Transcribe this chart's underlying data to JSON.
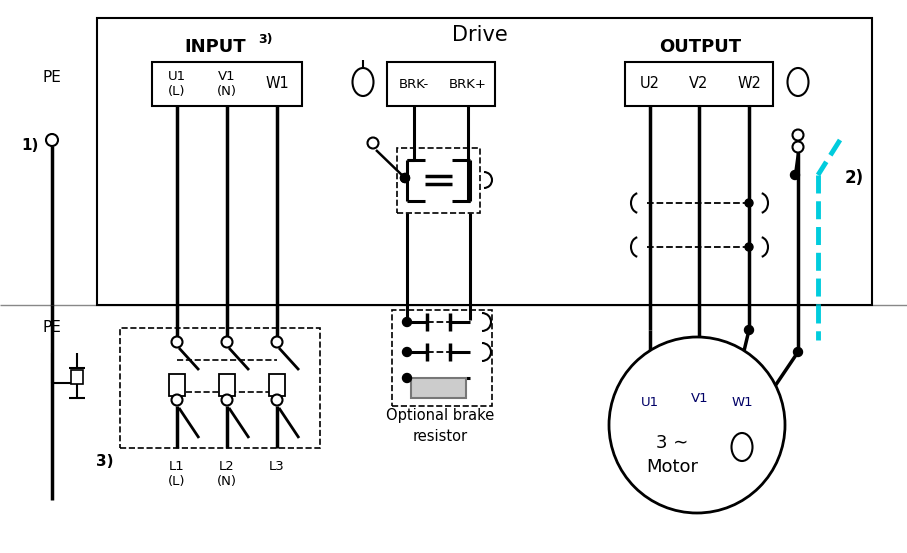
{
  "bg_color": "#ffffff",
  "line_color": "#000000",
  "cyan_color": "#00ccdd",
  "fig_width": 9.07,
  "fig_height": 5.53,
  "dpi": 100,
  "drive_title": "Drive",
  "input_label": "INPUT",
  "input_sup": "3)",
  "output_label": "OUTPUT",
  "motor_line1": "3 ∼",
  "motor_line2": "Motor",
  "brake_text": "Optional brake\nresistor",
  "label_PE": "PE",
  "label_1": "1)",
  "label_2": "2)",
  "label_3": "3)"
}
